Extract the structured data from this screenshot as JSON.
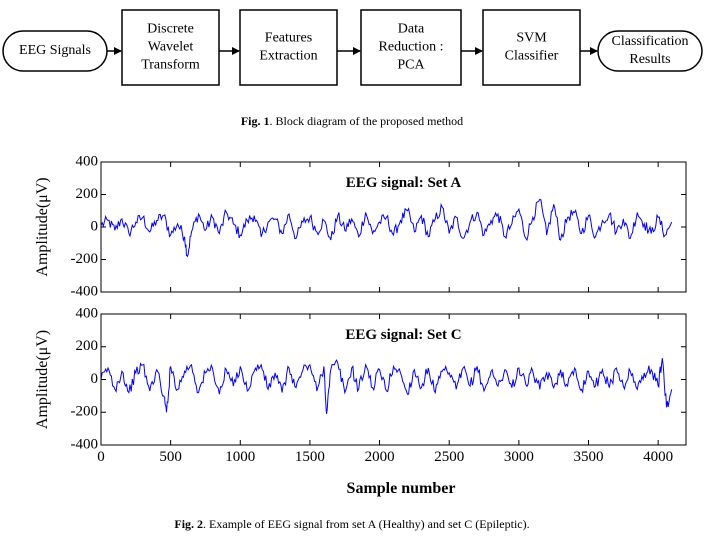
{
  "fig1": {
    "nodes": [
      {
        "shape": "rounded",
        "lines": [
          "EEG Signals"
        ]
      },
      {
        "shape": "rect",
        "lines": [
          "Discrete",
          "Wavelet",
          "Transform"
        ]
      },
      {
        "shape": "rect",
        "lines": [
          "Features",
          "Extraction"
        ]
      },
      {
        "shape": "rect",
        "lines": [
          "Data",
          "Reduction :",
          "PCA"
        ]
      },
      {
        "shape": "rect",
        "lines": [
          "SVM",
          "Classifier"
        ]
      },
      {
        "shape": "rounded",
        "lines": [
          "Classification",
          "Results"
        ]
      }
    ],
    "caption_label": "Fig. 1",
    "caption_text": ". Block diagram of the proposed method"
  },
  "fig2": {
    "caption_label": "Fig. 2",
    "caption_text": ". Example of EEG signal from set A (Healthy) and set C (Epileptic).",
    "xlabel": "Sample number"
  },
  "chart_data": [
    {
      "type": "line",
      "title": "EEG signal: Set A",
      "ylabel": "Amplitude(μV)",
      "xlabel": "",
      "xlim": [
        0,
        4200
      ],
      "ylim": [
        -400,
        400
      ],
      "yticks": [
        400,
        200,
        0,
        -200,
        -400
      ],
      "xticks": [],
      "grid": false,
      "color": "#0000ff",
      "x": [
        0,
        50,
        100,
        150,
        200,
        250,
        300,
        350,
        400,
        450,
        500,
        550,
        600,
        620,
        650,
        700,
        750,
        800,
        850,
        900,
        950,
        1000,
        1050,
        1100,
        1150,
        1200,
        1250,
        1300,
        1350,
        1400,
        1450,
        1500,
        1550,
        1600,
        1650,
        1700,
        1750,
        1800,
        1850,
        1900,
        1950,
        2000,
        2050,
        2100,
        2150,
        2200,
        2250,
        2300,
        2350,
        2400,
        2450,
        2500,
        2550,
        2600,
        2650,
        2700,
        2750,
        2800,
        2850,
        2900,
        2950,
        3000,
        3050,
        3100,
        3150,
        3200,
        3250,
        3300,
        3350,
        3400,
        3450,
        3500,
        3550,
        3600,
        3650,
        3700,
        3750,
        3800,
        3850,
        3900,
        3950,
        4000,
        4050,
        4097
      ],
      "y": [
        10,
        40,
        -20,
        50,
        -40,
        30,
        60,
        -30,
        40,
        70,
        -50,
        20,
        -60,
        -180,
        -30,
        80,
        -20,
        60,
        -40,
        90,
        20,
        -50,
        40,
        70,
        -60,
        30,
        50,
        -40,
        80,
        -70,
        30,
        60,
        -30,
        40,
        -80,
        70,
        -20,
        50,
        -60,
        90,
        -40,
        30,
        60,
        -50,
        40,
        100,
        -30,
        70,
        -60,
        50,
        120,
        -40,
        60,
        -70,
        30,
        90,
        -50,
        40,
        80,
        -60,
        20,
        110,
        -70,
        60,
        170,
        -50,
        140,
        -80,
        60,
        90,
        -40,
        70,
        -60,
        40,
        80,
        -30,
        50,
        -70,
        90,
        20,
        -40,
        60,
        -50,
        30
      ]
    },
    {
      "type": "line",
      "title": "EEG signal: Set C",
      "ylabel": "Amplitude(μV)",
      "xlabel": "Sample number",
      "xlim": [
        0,
        4200
      ],
      "ylim": [
        -400,
        400
      ],
      "yticks": [
        400,
        200,
        0,
        -200,
        -400
      ],
      "xticks": [
        0,
        500,
        1000,
        1500,
        2000,
        2500,
        3000,
        3500,
        4000
      ],
      "grid": false,
      "color": "#0000ff",
      "x": [
        0,
        50,
        100,
        150,
        200,
        250,
        300,
        350,
        400,
        450,
        470,
        500,
        550,
        600,
        650,
        700,
        750,
        800,
        850,
        900,
        950,
        1000,
        1050,
        1100,
        1150,
        1200,
        1250,
        1300,
        1350,
        1400,
        1450,
        1500,
        1550,
        1600,
        1620,
        1650,
        1700,
        1750,
        1800,
        1850,
        1900,
        1950,
        2000,
        2050,
        2100,
        2150,
        2200,
        2250,
        2300,
        2350,
        2400,
        2450,
        2500,
        2550,
        2600,
        2650,
        2700,
        2750,
        2800,
        2850,
        2900,
        2950,
        3000,
        3050,
        3100,
        3150,
        3200,
        3250,
        3300,
        3350,
        3400,
        3450,
        3500,
        3550,
        3600,
        3650,
        3700,
        3750,
        3800,
        3850,
        3900,
        3950,
        4000,
        4030,
        4060,
        4097
      ],
      "y": [
        0,
        70,
        -60,
        50,
        -80,
        40,
        90,
        -70,
        60,
        -100,
        -200,
        80,
        -60,
        50,
        90,
        -80,
        40,
        70,
        -90,
        60,
        -40,
        80,
        -70,
        50,
        90,
        -60,
        40,
        -80,
        70,
        -50,
        60,
        90,
        -70,
        80,
        -210,
        60,
        100,
        -80,
        70,
        -60,
        90,
        -50,
        60,
        -70,
        80,
        40,
        -90,
        60,
        -50,
        70,
        -80,
        50,
        40,
        -60,
        70,
        -40,
        80,
        -70,
        50,
        -40,
        60,
        -50,
        70,
        -30,
        50,
        -60,
        40,
        -50,
        60,
        -40,
        70,
        -60,
        50,
        -40,
        60,
        -50,
        70,
        -40,
        50,
        -60,
        40,
        60,
        -40,
        130,
        -170,
        -60
      ]
    }
  ]
}
